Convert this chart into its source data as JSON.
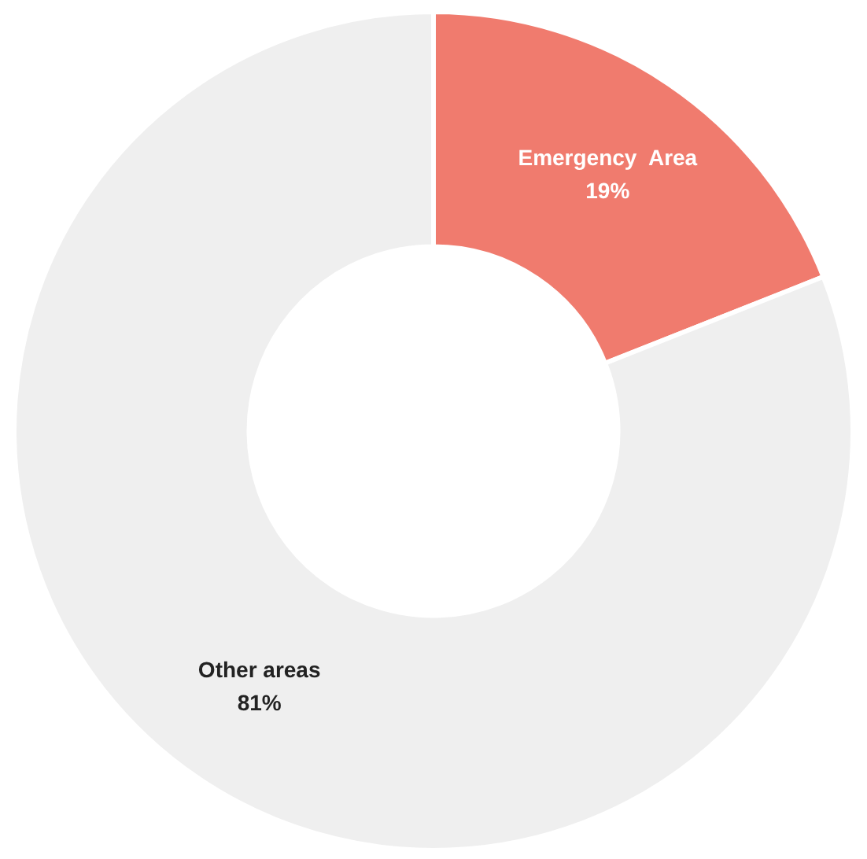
{
  "chart_data": {
    "type": "donut",
    "categories": [
      "Emergency  Area",
      "Other areas"
    ],
    "values": [
      19,
      81
    ],
    "colors": [
      "#f07b6e",
      "#efefef"
    ],
    "value_labels": [
      "19%",
      "81%"
    ],
    "legend": false
  }
}
